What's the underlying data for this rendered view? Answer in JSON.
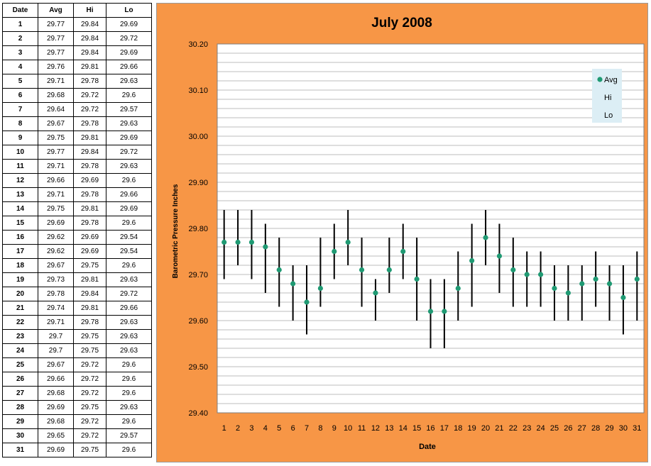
{
  "table": {
    "headers": [
      "Date",
      "Avg",
      "Hi",
      "Lo"
    ],
    "rows": [
      [
        "1",
        "29.77",
        "29.84",
        "29.69"
      ],
      [
        "2",
        "29.77",
        "29.84",
        "29.72"
      ],
      [
        "3",
        "29.77",
        "29.84",
        "29.69"
      ],
      [
        "4",
        "29.76",
        "29.81",
        "29.66"
      ],
      [
        "5",
        "29.71",
        "29.78",
        "29.63"
      ],
      [
        "6",
        "29.68",
        "29.72",
        "29.6"
      ],
      [
        "7",
        "29.64",
        "29.72",
        "29.57"
      ],
      [
        "8",
        "29.67",
        "29.78",
        "29.63"
      ],
      [
        "9",
        "29.75",
        "29.81",
        "29.69"
      ],
      [
        "10",
        "29.77",
        "29.84",
        "29.72"
      ],
      [
        "11",
        "29.71",
        "29.78",
        "29.63"
      ],
      [
        "12",
        "29.66",
        "29.69",
        "29.6"
      ],
      [
        "13",
        "29.71",
        "29.78",
        "29.66"
      ],
      [
        "14",
        "29.75",
        "29.81",
        "29.69"
      ],
      [
        "15",
        "29.69",
        "29.78",
        "29.6"
      ],
      [
        "16",
        "29.62",
        "29.69",
        "29.54"
      ],
      [
        "17",
        "29.62",
        "29.69",
        "29.54"
      ],
      [
        "18",
        "29.67",
        "29.75",
        "29.6"
      ],
      [
        "19",
        "29.73",
        "29.81",
        "29.63"
      ],
      [
        "20",
        "29.78",
        "29.84",
        "29.72"
      ],
      [
        "21",
        "29.74",
        "29.81",
        "29.66"
      ],
      [
        "22",
        "29.71",
        "29.78",
        "29.63"
      ],
      [
        "23",
        "29.7",
        "29.75",
        "29.63"
      ],
      [
        "24",
        "29.7",
        "29.75",
        "29.63"
      ],
      [
        "25",
        "29.67",
        "29.72",
        "29.6"
      ],
      [
        "26",
        "29.66",
        "29.72",
        "29.6"
      ],
      [
        "27",
        "29.68",
        "29.72",
        "29.6"
      ],
      [
        "28",
        "29.69",
        "29.75",
        "29.63"
      ],
      [
        "29",
        "29.68",
        "29.72",
        "29.6"
      ],
      [
        "30",
        "29.65",
        "29.72",
        "29.57"
      ],
      [
        "31",
        "29.69",
        "29.75",
        "29.6"
      ]
    ]
  },
  "chart_data": {
    "type": "scatter",
    "title": "July 2008",
    "xlabel": "Date",
    "ylabel": "Barometric Pressure Inches",
    "x": [
      1,
      2,
      3,
      4,
      5,
      6,
      7,
      8,
      9,
      10,
      11,
      12,
      13,
      14,
      15,
      16,
      17,
      18,
      19,
      20,
      21,
      22,
      23,
      24,
      25,
      26,
      27,
      28,
      29,
      30,
      31
    ],
    "series": [
      {
        "name": "Avg",
        "values": [
          29.77,
          29.77,
          29.77,
          29.76,
          29.71,
          29.68,
          29.64,
          29.67,
          29.75,
          29.77,
          29.71,
          29.66,
          29.71,
          29.75,
          29.69,
          29.62,
          29.62,
          29.67,
          29.73,
          29.78,
          29.74,
          29.71,
          29.7,
          29.7,
          29.67,
          29.66,
          29.68,
          29.69,
          29.68,
          29.65,
          29.69
        ]
      },
      {
        "name": "Hi",
        "values": [
          29.84,
          29.84,
          29.84,
          29.81,
          29.78,
          29.72,
          29.72,
          29.78,
          29.81,
          29.84,
          29.78,
          29.69,
          29.78,
          29.81,
          29.78,
          29.69,
          29.69,
          29.75,
          29.81,
          29.84,
          29.81,
          29.78,
          29.75,
          29.75,
          29.72,
          29.72,
          29.72,
          29.75,
          29.72,
          29.72,
          29.75
        ]
      },
      {
        "name": "Lo",
        "values": [
          29.69,
          29.72,
          29.69,
          29.66,
          29.63,
          29.6,
          29.57,
          29.63,
          29.69,
          29.72,
          29.63,
          29.6,
          29.66,
          29.69,
          29.6,
          29.54,
          29.54,
          29.6,
          29.63,
          29.72,
          29.66,
          29.63,
          29.63,
          29.63,
          29.6,
          29.6,
          29.6,
          29.63,
          29.6,
          29.57,
          29.6
        ]
      }
    ],
    "ylim": [
      29.4,
      30.2
    ],
    "yticks": [
      "29.40",
      "29.50",
      "29.60",
      "29.70",
      "29.80",
      "29.90",
      "30.00",
      "30.10",
      "30.20"
    ],
    "minor_gridline_step": 0.02,
    "grid": true,
    "legend_position": "top-right",
    "colors": {
      "avg_marker": "#1f9a73",
      "hi_lo_bar": "#000000",
      "panel_background": "#f79646",
      "plot_background": "#ffffff",
      "gridline": "#a6a6a6",
      "legend_background": "#dceef5"
    }
  }
}
